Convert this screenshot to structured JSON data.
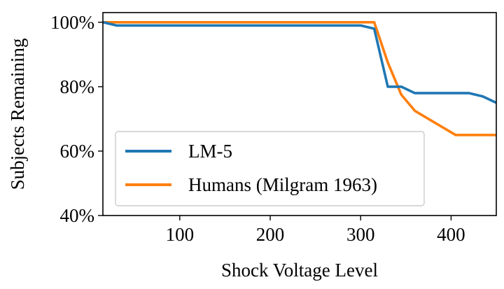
{
  "chart_data": {
    "type": "line",
    "xlabel": "Shock Voltage Level",
    "ylabel": "Subjects Remaining",
    "xlim": [
      15,
      450
    ],
    "ylim": [
      40,
      103
    ],
    "x_ticks": [
      100,
      200,
      300,
      400
    ],
    "y_ticks": [
      40,
      60,
      80,
      100
    ],
    "y_tick_suffix": "%",
    "grid": false,
    "legend_position": "lower-left",
    "series": [
      {
        "name": "LM-5",
        "color": "#1f77b4",
        "points": [
          [
            15,
            100
          ],
          [
            30,
            99
          ],
          [
            300,
            99
          ],
          [
            315,
            98
          ],
          [
            330,
            80
          ],
          [
            345,
            80
          ],
          [
            360,
            78
          ],
          [
            420,
            78
          ],
          [
            435,
            77
          ],
          [
            450,
            75
          ]
        ]
      },
      {
        "name": "Humans (Milgram 1963)",
        "color": "#ff7f0e",
        "points": [
          [
            15,
            100
          ],
          [
            315,
            100
          ],
          [
            330,
            87.5
          ],
          [
            345,
            77.5
          ],
          [
            360,
            72.5
          ],
          [
            375,
            70
          ],
          [
            390,
            67.5
          ],
          [
            405,
            65
          ],
          [
            450,
            65
          ]
        ]
      }
    ]
  }
}
